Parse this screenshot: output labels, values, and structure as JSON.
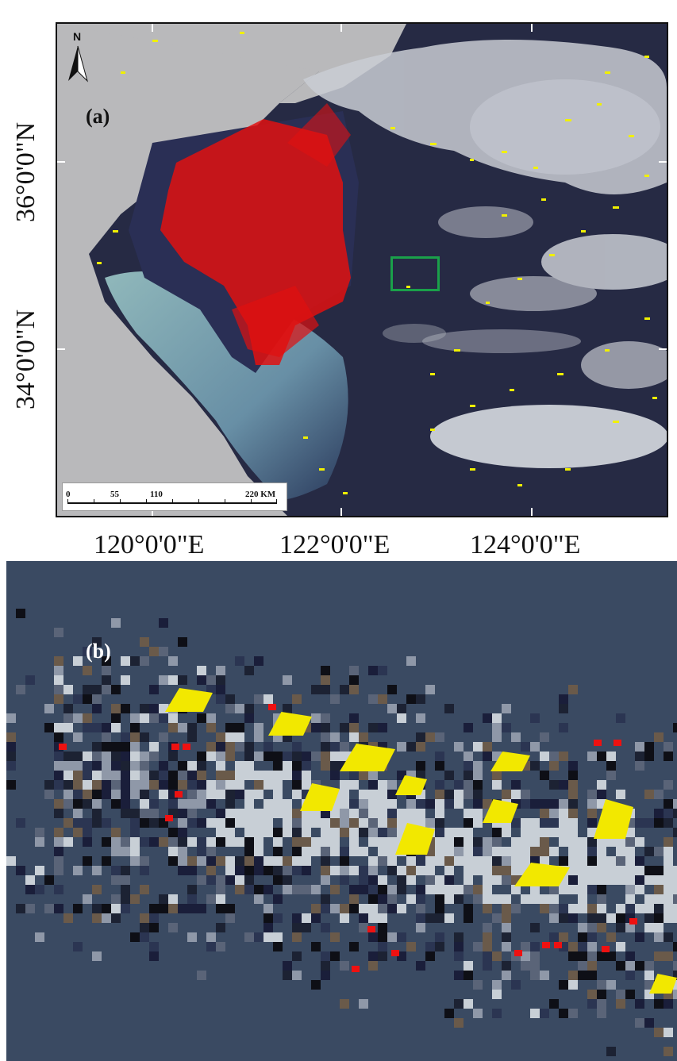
{
  "panel_a": {
    "label": "(a)",
    "north": "N",
    "latitude_labels": [
      "36°0'0\"N",
      "34°0'0\"N"
    ],
    "longitude_labels": [
      "120°0'0\"E",
      "122°0'0\"E",
      "124°0'0\"E"
    ],
    "scale_bar": {
      "ticks": [
        "0",
        "55",
        "110",
        "220 KM"
      ]
    },
    "colors": {
      "land": "#b9b9bb",
      "sea": "#262a44",
      "detected_red": "#e01010",
      "detected_yellow": "#f0f000",
      "study_box": "#1aa04a"
    }
  },
  "panel_b": {
    "label": "(b)",
    "colors": {
      "background": "#3a4a62",
      "cloud": "#c8cfd6",
      "yellow": "#f2e800",
      "red": "#ee1111"
    }
  }
}
